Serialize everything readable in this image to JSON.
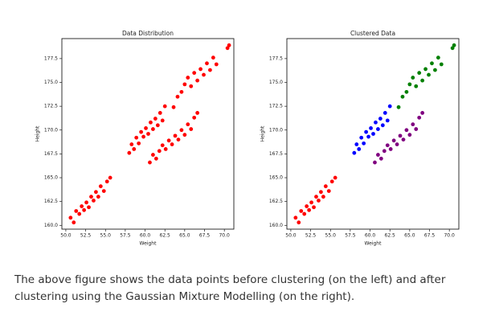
{
  "chart_data": [
    {
      "type": "scatter",
      "title": "Data Distribution",
      "x_label": "Weight",
      "y_label": "Height",
      "xlim": [
        49.5,
        71.2
      ],
      "ylim": [
        159.6,
        179.6
      ],
      "xticks": [
        {
          "value": 50,
          "label": "50.0"
        },
        52.5,
        {
          "value": 55,
          "label": "55.0"
        },
        57.5,
        {
          "value": 60,
          "label": "60.0"
        },
        62.5,
        {
          "value": 65,
          "label": "65.0"
        },
        67.5,
        {
          "value": 70,
          "label": "70.0"
        }
      ],
      "yticks": [
        {
          "value": 160,
          "label": "160.0"
        },
        162.5,
        {
          "value": 165,
          "label": "165.0"
        },
        167.5,
        {
          "value": 170,
          "label": "170.0"
        },
        172.5,
        {
          "value": 175,
          "label": "175.0"
        },
        177.5
      ],
      "series": [
        {
          "color": "#ff0000",
          "x": [
            50.6,
            51.0,
            51.3,
            51.7,
            52.0,
            52.3,
            52.6,
            52.9,
            53.2,
            53.5,
            53.8,
            54.1,
            54.4,
            54.8,
            55.2,
            55.6
          ],
          "values": [
            160.8,
            160.3,
            161.5,
            161.2,
            162.0,
            161.6,
            162.4,
            161.9,
            163.0,
            162.6,
            163.5,
            163.0,
            164.1,
            163.6,
            164.6,
            165.0
          ]
        },
        {
          "color": "#ff0000",
          "x": [
            58.0,
            58.3,
            58.6,
            58.9,
            59.2,
            59.5,
            59.8,
            60.1,
            60.4,
            60.7,
            61.0,
            61.3,
            61.6,
            61.9,
            62.2,
            62.5
          ],
          "values": [
            167.6,
            168.5,
            168.0,
            169.2,
            168.6,
            169.8,
            169.3,
            170.2,
            169.6,
            170.8,
            170.1,
            171.2,
            170.5,
            171.8,
            171.0,
            172.5
          ]
        },
        {
          "color": "#ff0000",
          "x": [
            60.6,
            61.0,
            61.4,
            61.8,
            62.2,
            62.6,
            63.0,
            63.4,
            63.8,
            64.2,
            64.6,
            65.0,
            65.4,
            65.8,
            66.2,
            66.6
          ],
          "values": [
            166.6,
            167.4,
            167.0,
            167.8,
            168.4,
            168.0,
            168.9,
            168.5,
            169.4,
            169.0,
            170.0,
            169.5,
            170.6,
            170.1,
            171.3,
            171.8
          ]
        },
        {
          "color": "#ff0000",
          "x": [
            63.6,
            64.1,
            64.6,
            65.0,
            65.4,
            65.8,
            66.2,
            66.6,
            67.0,
            67.4,
            67.8,
            68.2,
            68.6,
            69.0,
            70.4,
            70.6
          ],
          "values": [
            172.4,
            173.5,
            174.0,
            174.8,
            175.5,
            174.6,
            176.0,
            175.2,
            176.4,
            175.8,
            177.0,
            176.3,
            177.6,
            176.9,
            178.6,
            178.9
          ]
        }
      ]
    },
    {
      "type": "scatter",
      "title": "Clustered Data",
      "x_label": "Weight",
      "y_label": "Height",
      "xlim": [
        49.5,
        71.2
      ],
      "ylim": [
        159.6,
        179.6
      ],
      "xticks": [
        {
          "value": 50,
          "label": "50.0"
        },
        52.5,
        {
          "value": 55,
          "label": "55.0"
        },
        57.5,
        {
          "value": 60,
          "label": "60.0"
        },
        62.5,
        {
          "value": 65,
          "label": "65.0"
        },
        67.5,
        {
          "value": 70,
          "label": "70.0"
        }
      ],
      "yticks": [
        {
          "value": 160,
          "label": "160.0"
        },
        162.5,
        {
          "value": 165,
          "label": "165.0"
        },
        167.5,
        {
          "value": 170,
          "label": "170.0"
        },
        172.5,
        {
          "value": 175,
          "label": "175.0"
        },
        177.5
      ],
      "series": [
        {
          "color": "#ff0000",
          "x": [
            50.6,
            51.0,
            51.3,
            51.7,
            52.0,
            52.3,
            52.6,
            52.9,
            53.2,
            53.5,
            53.8,
            54.1,
            54.4,
            54.8,
            55.2,
            55.6
          ],
          "values": [
            160.8,
            160.3,
            161.5,
            161.2,
            162.0,
            161.6,
            162.4,
            161.9,
            163.0,
            162.6,
            163.5,
            163.0,
            164.1,
            163.6,
            164.6,
            165.0
          ]
        },
        {
          "color": "#0000ff",
          "x": [
            58.0,
            58.3,
            58.6,
            58.9,
            59.2,
            59.5,
            59.8,
            60.1,
            60.4,
            60.7,
            61.0,
            61.3,
            61.6,
            61.9,
            62.2,
            62.5
          ],
          "values": [
            167.6,
            168.5,
            168.0,
            169.2,
            168.6,
            169.8,
            169.3,
            170.2,
            169.6,
            170.8,
            170.1,
            171.2,
            170.5,
            171.8,
            171.0,
            172.5
          ]
        },
        {
          "color": "#800080",
          "x": [
            60.6,
            61.0,
            61.4,
            61.8,
            62.2,
            62.6,
            63.0,
            63.4,
            63.8,
            64.2,
            64.6,
            65.0,
            65.4,
            65.8,
            66.2,
            66.6
          ],
          "values": [
            166.6,
            167.4,
            167.0,
            167.8,
            168.4,
            168.0,
            168.9,
            168.5,
            169.4,
            169.0,
            170.0,
            169.5,
            170.6,
            170.1,
            171.3,
            171.8
          ]
        },
        {
          "color": "#008000",
          "x": [
            63.6,
            64.1,
            64.6,
            65.0,
            65.4,
            65.8,
            66.2,
            66.6,
            67.0,
            67.4,
            67.8,
            68.2,
            68.6,
            69.0,
            70.4,
            70.6
          ],
          "values": [
            172.4,
            173.5,
            174.0,
            174.8,
            175.5,
            174.6,
            176.0,
            175.2,
            176.4,
            175.8,
            177.0,
            176.3,
            177.6,
            176.9,
            178.6,
            178.9
          ]
        }
      ]
    }
  ],
  "caption": "The above figure shows the data points before clustering (on the left) and after clustering using the Gaussian Mixture Modelling (on the right)."
}
